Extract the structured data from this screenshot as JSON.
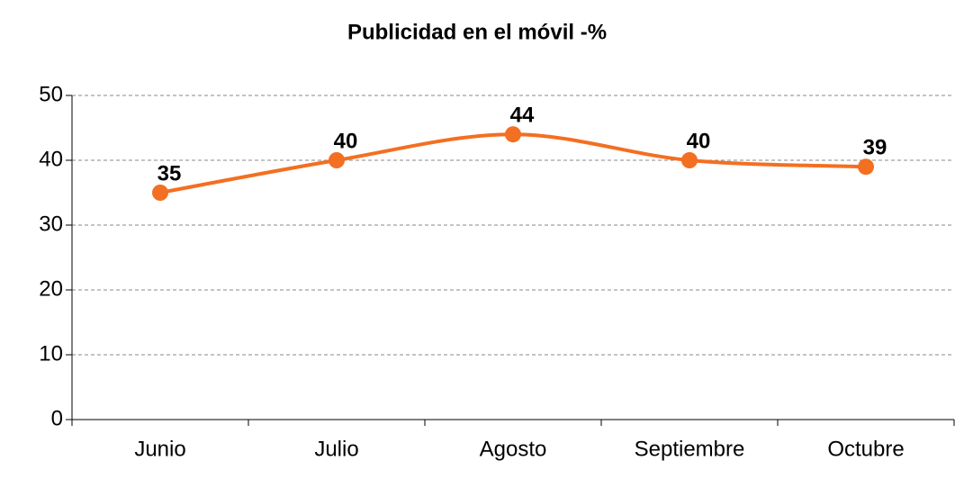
{
  "chart_data": {
    "type": "line",
    "title": "Publicidad en el móvil -%",
    "categories": [
      "Junio",
      "Julio",
      "Agosto",
      "Septiembre",
      "Octubre"
    ],
    "values": [
      35,
      40,
      44,
      40,
      39
    ],
    "color": "#f36f21",
    "ylim": [
      0,
      50
    ],
    "yticks": [
      0,
      10,
      20,
      30,
      40,
      50
    ],
    "grid": true,
    "smooth": true
  }
}
